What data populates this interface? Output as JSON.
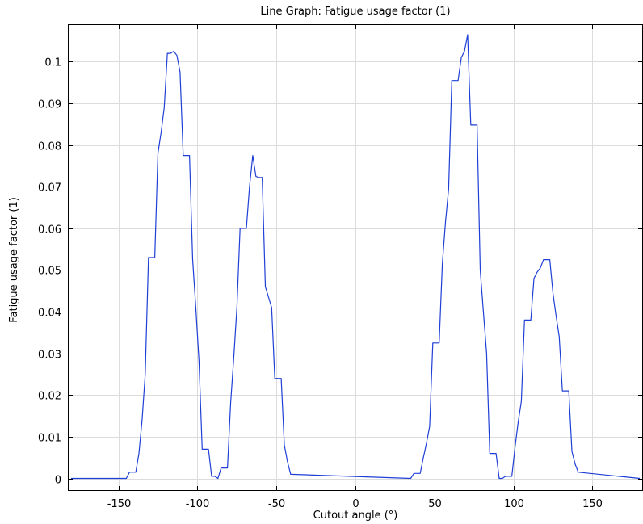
{
  "chart_data": {
    "type": "line",
    "title": "Line Graph: Fatigue usage factor (1)",
    "xlabel": "Cutout angle (°)",
    "ylabel": "Fatigue usage factor (1)",
    "xlim": [
      -182,
      182
    ],
    "ylim": [
      -0.003,
      0.109
    ],
    "xticks": [
      -150,
      -100,
      -50,
      0,
      50,
      100,
      150
    ],
    "yticks": [
      0,
      0.01,
      0.02,
      0.03,
      0.04,
      0.05,
      0.06,
      0.07,
      0.08,
      0.09,
      0.1
    ],
    "grid": true,
    "series": [
      {
        "color": "#1f3fd6",
        "x": [
          -180,
          -145,
          -143,
          -139,
          -137,
          -135,
          -133,
          -131,
          -129,
          -127,
          -125,
          -123,
          -121,
          -119,
          -117,
          -115,
          -113,
          -111,
          -109,
          -107,
          -105,
          -103,
          -101,
          -99,
          -97,
          -95,
          -93,
          -91,
          -89,
          -87,
          -85,
          -83,
          -81,
          -79,
          -77,
          -75,
          -73,
          -71,
          -69,
          -67,
          -65,
          -63,
          -61,
          -59,
          -57,
          -55,
          -53,
          -51,
          -49,
          -47,
          -45,
          -43,
          -41,
          35,
          37,
          39,
          41,
          43,
          45,
          47,
          49,
          51,
          53,
          55,
          57,
          59,
          61,
          63,
          65,
          67,
          69,
          71,
          73,
          75,
          77,
          79,
          81,
          83,
          85,
          87,
          89,
          91,
          93,
          95,
          97,
          99,
          101,
          103,
          105,
          107,
          109,
          111,
          113,
          115,
          117,
          119,
          121,
          123,
          125,
          127,
          129,
          131,
          133,
          135,
          137,
          139,
          141,
          180
        ],
        "values": [
          0,
          0,
          0.0015,
          0.0015,
          0.006,
          0.014,
          0.025,
          0.053,
          0.053,
          0.053,
          0.078,
          0.083,
          0.089,
          0.102,
          0.102,
          0.1025,
          0.1015,
          0.0975,
          0.0775,
          0.0775,
          0.0775,
          0.0525,
          0.041,
          0.028,
          0.007,
          0.007,
          0.007,
          0.0005,
          0.0005,
          0,
          0.0025,
          0.0025,
          0.0025,
          0.018,
          0.029,
          0.041,
          0.06,
          0.06,
          0.06,
          0.07,
          0.0775,
          0.0725,
          0.0722,
          0.0722,
          0.046,
          0.0435,
          0.041,
          0.024,
          0.024,
          0.024,
          0.008,
          0.004,
          0.001,
          0,
          0.0012,
          0.0012,
          0.0012,
          0.005,
          0.0085,
          0.0125,
          0.0325,
          0.0325,
          0.0325,
          0.0515,
          0.0615,
          0.0695,
          0.0955,
          0.0955,
          0.0955,
          0.101,
          0.1025,
          0.1065,
          0.0848,
          0.0848,
          0.0848,
          0.05,
          0.04,
          0.03,
          0.006,
          0.006,
          0.006,
          0,
          0,
          0.0005,
          0.0005,
          0.0005,
          0.0075,
          0.0135,
          0.0185,
          0.038,
          0.038,
          0.038,
          0.048,
          0.0495,
          0.0505,
          0.0525,
          0.0525,
          0.0525,
          0.0445,
          0.039,
          0.034,
          0.021,
          0.021,
          0.021,
          0.0065,
          0.0035,
          0.0015,
          0
        ]
      }
    ]
  }
}
